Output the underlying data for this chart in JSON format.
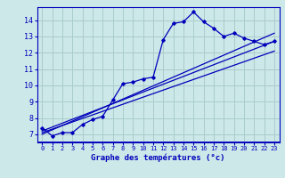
{
  "xlabel": "Graphe des températures (°c)",
  "background_color": "#cce8e8",
  "grid_color": "#aacccc",
  "line_color": "#0000bb",
  "xlim": [
    -0.5,
    23.5
  ],
  "ylim": [
    6.5,
    14.8
  ],
  "xticks": [
    0,
    1,
    2,
    3,
    4,
    5,
    6,
    7,
    8,
    9,
    10,
    11,
    12,
    13,
    14,
    15,
    16,
    17,
    18,
    19,
    20,
    21,
    22,
    23
  ],
  "yticks": [
    7,
    8,
    9,
    10,
    11,
    12,
    13,
    14
  ],
  "line1_x": [
    0,
    1,
    2,
    3,
    4,
    5,
    6,
    7,
    8,
    9,
    10,
    11,
    12,
    13,
    14,
    15,
    16,
    17,
    18,
    19,
    20,
    21,
    22,
    23
  ],
  "line1_y": [
    7.4,
    6.9,
    7.1,
    7.1,
    7.6,
    7.9,
    8.1,
    9.1,
    10.1,
    10.2,
    10.4,
    10.5,
    12.8,
    13.8,
    13.9,
    14.5,
    13.9,
    13.5,
    13.0,
    13.2,
    12.9,
    12.7,
    12.5,
    12.7
  ],
  "line2_x": [
    0,
    23
  ],
  "line2_y": [
    7.2,
    12.7
  ],
  "line3_x": [
    0,
    23
  ],
  "line3_y": [
    7.1,
    12.1
  ],
  "line4_x": [
    0,
    23
  ],
  "line4_y": [
    7.0,
    13.2
  ]
}
